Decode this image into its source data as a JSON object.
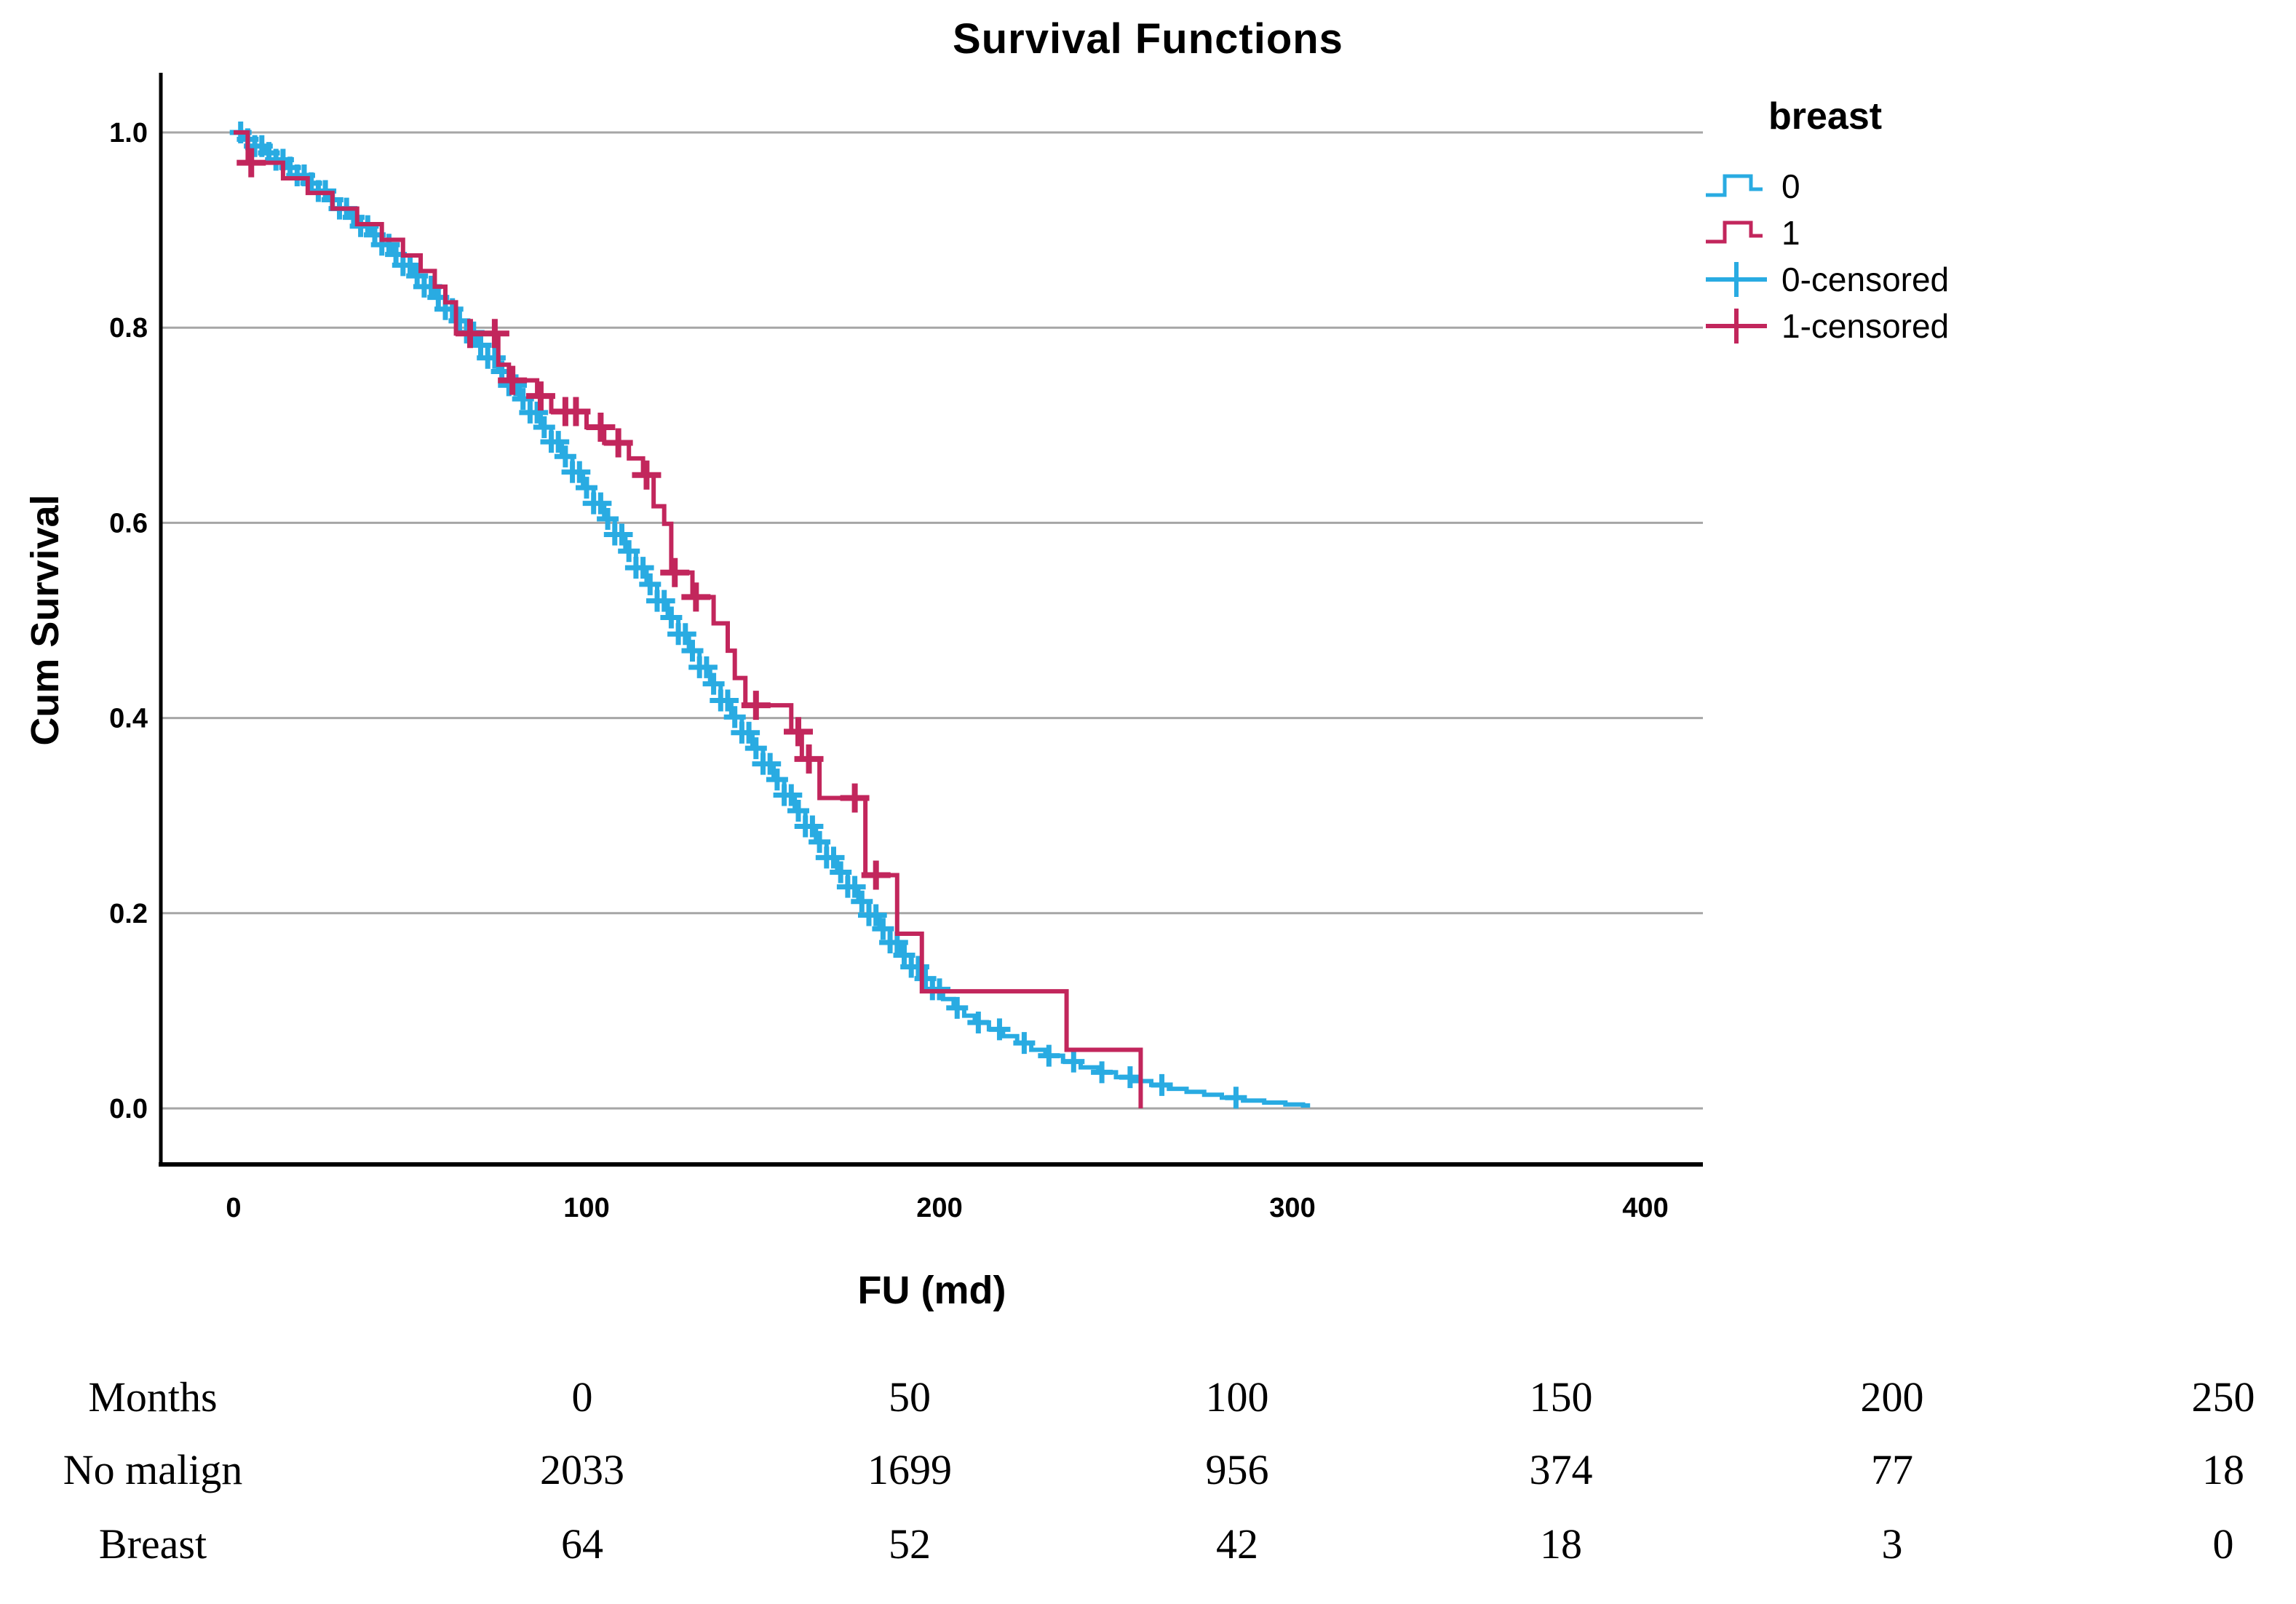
{
  "figure": {
    "title": "Survival Functions"
  },
  "chart_data": {
    "type": "line",
    "subtype": "kaplan-meier-step-survival",
    "title": "Survival Functions",
    "xlabel": "FU (md)",
    "ylabel": "Cum Survival",
    "xticks": [
      0,
      100,
      200,
      300,
      400
    ],
    "ytick_labels": [
      "0.0",
      "0.2",
      "0.4",
      "0.6",
      "0.8",
      "1.0"
    ],
    "ytick_values": [
      0.0,
      0.2,
      0.4,
      0.6,
      0.8,
      1.0
    ],
    "xlim": [
      -20,
      420
    ],
    "ylim": [
      0,
      1.05
    ],
    "grid": "horizontal",
    "gridline_color": "#a6a6a6",
    "axis_color": "#000000",
    "legend_title": "breast",
    "legend_position": "right",
    "series": [
      {
        "name": "0",
        "color": "#29abe2",
        "steps": [
          [
            0,
            1.0
          ],
          [
            3,
            0.993
          ],
          [
            6,
            0.986
          ],
          [
            9,
            0.979
          ],
          [
            12,
            0.972
          ],
          [
            15,
            0.964
          ],
          [
            18,
            0.956
          ],
          [
            21,
            0.948
          ],
          [
            24,
            0.94
          ],
          [
            27,
            0.931
          ],
          [
            30,
            0.922
          ],
          [
            33,
            0.913
          ],
          [
            36,
            0.904
          ],
          [
            39,
            0.895
          ],
          [
            42,
            0.885
          ],
          [
            45,
            0.875
          ],
          [
            48,
            0.864
          ],
          [
            51,
            0.853
          ],
          [
            54,
            0.842
          ],
          [
            57,
            0.831
          ],
          [
            60,
            0.819
          ],
          [
            63,
            0.807
          ],
          [
            66,
            0.795
          ],
          [
            69,
            0.782
          ],
          [
            72,
            0.769
          ],
          [
            75,
            0.755
          ],
          [
            78,
            0.741
          ],
          [
            81,
            0.727
          ],
          [
            84,
            0.713
          ],
          [
            87,
            0.698
          ],
          [
            90,
            0.683
          ],
          [
            93,
            0.668
          ],
          [
            96,
            0.652
          ],
          [
            99,
            0.636
          ],
          [
            102,
            0.62
          ],
          [
            105,
            0.604
          ],
          [
            108,
            0.588
          ],
          [
            111,
            0.571
          ],
          [
            114,
            0.554
          ],
          [
            117,
            0.537
          ],
          [
            120,
            0.52
          ],
          [
            123,
            0.503
          ],
          [
            126,
            0.486
          ],
          [
            129,
            0.469
          ],
          [
            132,
            0.452
          ],
          [
            135,
            0.435
          ],
          [
            138,
            0.418
          ],
          [
            141,
            0.401
          ],
          [
            144,
            0.385
          ],
          [
            147,
            0.369
          ],
          [
            150,
            0.353
          ],
          [
            153,
            0.337
          ],
          [
            156,
            0.321
          ],
          [
            159,
            0.305
          ],
          [
            162,
            0.289
          ],
          [
            165,
            0.273
          ],
          [
            168,
            0.257
          ],
          [
            171,
            0.242
          ],
          [
            174,
            0.227
          ],
          [
            177,
            0.212
          ],
          [
            180,
            0.198
          ],
          [
            183,
            0.184
          ],
          [
            186,
            0.17
          ],
          [
            189,
            0.157
          ],
          [
            192,
            0.145
          ],
          [
            195,
            0.133
          ],
          [
            198,
            0.122
          ],
          [
            201,
            0.112
          ],
          [
            204,
            0.103
          ],
          [
            207,
            0.095
          ],
          [
            210,
            0.088
          ],
          [
            214,
            0.081
          ],
          [
            218,
            0.074
          ],
          [
            222,
            0.067
          ],
          [
            226,
            0.06
          ],
          [
            230,
            0.054
          ],
          [
            235,
            0.048
          ],
          [
            240,
            0.042
          ],
          [
            245,
            0.037
          ],
          [
            250,
            0.032
          ],
          [
            255,
            0.028
          ],
          [
            260,
            0.024
          ],
          [
            265,
            0.02
          ],
          [
            270,
            0.017
          ],
          [
            275,
            0.014
          ],
          [
            280,
            0.011
          ],
          [
            286,
            0.008
          ],
          [
            292,
            0.006
          ],
          [
            298,
            0.004
          ],
          [
            303,
            0.003
          ]
        ],
        "tail_extend_to": 305,
        "drops_to_zero_at_end": false,
        "censor_times": [
          2,
          4,
          6,
          8,
          10,
          12,
          14,
          16,
          18,
          20,
          22,
          24,
          26,
          28,
          30,
          32,
          34,
          36,
          38,
          40,
          42,
          44,
          46,
          48,
          50,
          52,
          54,
          56,
          58,
          60,
          62,
          64,
          66,
          68,
          70,
          72,
          74,
          76,
          78,
          80,
          82,
          84,
          86,
          88,
          90,
          92,
          94,
          96,
          98,
          100,
          102,
          104,
          106,
          108,
          110,
          112,
          114,
          116,
          118,
          120,
          122,
          124,
          126,
          128,
          130,
          132,
          134,
          136,
          138,
          140,
          142,
          144,
          146,
          148,
          150,
          152,
          154,
          156,
          158,
          160,
          162,
          164,
          166,
          168,
          170,
          172,
          174,
          176,
          178,
          180,
          182,
          184,
          186,
          188,
          190,
          192,
          194,
          196,
          198,
          200,
          205,
          211,
          217,
          224,
          231,
          238,
          246,
          254,
          263,
          284
        ]
      },
      {
        "name": "1",
        "color": "#c2265c",
        "steps": [
          [
            0,
            1.0
          ],
          [
            4,
            0.969
          ],
          [
            14,
            0.953
          ],
          [
            21,
            0.938
          ],
          [
            28,
            0.922
          ],
          [
            35,
            0.906
          ],
          [
            42,
            0.89
          ],
          [
            48,
            0.874
          ],
          [
            53,
            0.858
          ],
          [
            57,
            0.842
          ],
          [
            60,
            0.826
          ],
          [
            63,
            0.794
          ],
          [
            75,
            0.762
          ],
          [
            78,
            0.746
          ],
          [
            86,
            0.73
          ],
          [
            90,
            0.714
          ],
          [
            100,
            0.698
          ],
          [
            105,
            0.682
          ],
          [
            112,
            0.666
          ],
          [
            116,
            0.649
          ],
          [
            119,
            0.617
          ],
          [
            122,
            0.599
          ],
          [
            124,
            0.549
          ],
          [
            130,
            0.524
          ],
          [
            136,
            0.497
          ],
          [
            140,
            0.469
          ],
          [
            142,
            0.441
          ],
          [
            145,
            0.413
          ],
          [
            158,
            0.386
          ],
          [
            161,
            0.358
          ],
          [
            166,
            0.318
          ],
          [
            179,
            0.239
          ],
          [
            188,
            0.179
          ],
          [
            195,
            0.12
          ],
          [
            236,
            0.06
          ],
          [
            257,
            0.0
          ]
        ],
        "tail_extend_to": 257,
        "drops_to_zero_at_end": true,
        "censor_times": [
          5,
          67,
          74,
          79,
          87,
          94,
          97,
          104,
          109,
          117,
          125,
          131,
          148,
          160,
          163,
          176,
          182
        ]
      }
    ]
  },
  "legend": {
    "title": "breast",
    "items": [
      {
        "label": "0",
        "type": "line",
        "color": "#29abe2"
      },
      {
        "label": "1",
        "type": "line",
        "color": "#c2265c"
      },
      {
        "label": "0-censored",
        "type": "plus",
        "color": "#29abe2"
      },
      {
        "label": "1-censored",
        "type": "plus",
        "color": "#c2265c"
      }
    ]
  },
  "risk_table": {
    "header_label": "Months",
    "time_points": [
      "0",
      "50",
      "100",
      "150",
      "200",
      "250"
    ],
    "rows": [
      {
        "label": "No malign",
        "counts": [
          "2033",
          "1699",
          "956",
          "374",
          "77",
          "18"
        ]
      },
      {
        "label": "Breast",
        "counts": [
          "64",
          "52",
          "42",
          "18",
          "3",
          "0"
        ]
      }
    ]
  }
}
